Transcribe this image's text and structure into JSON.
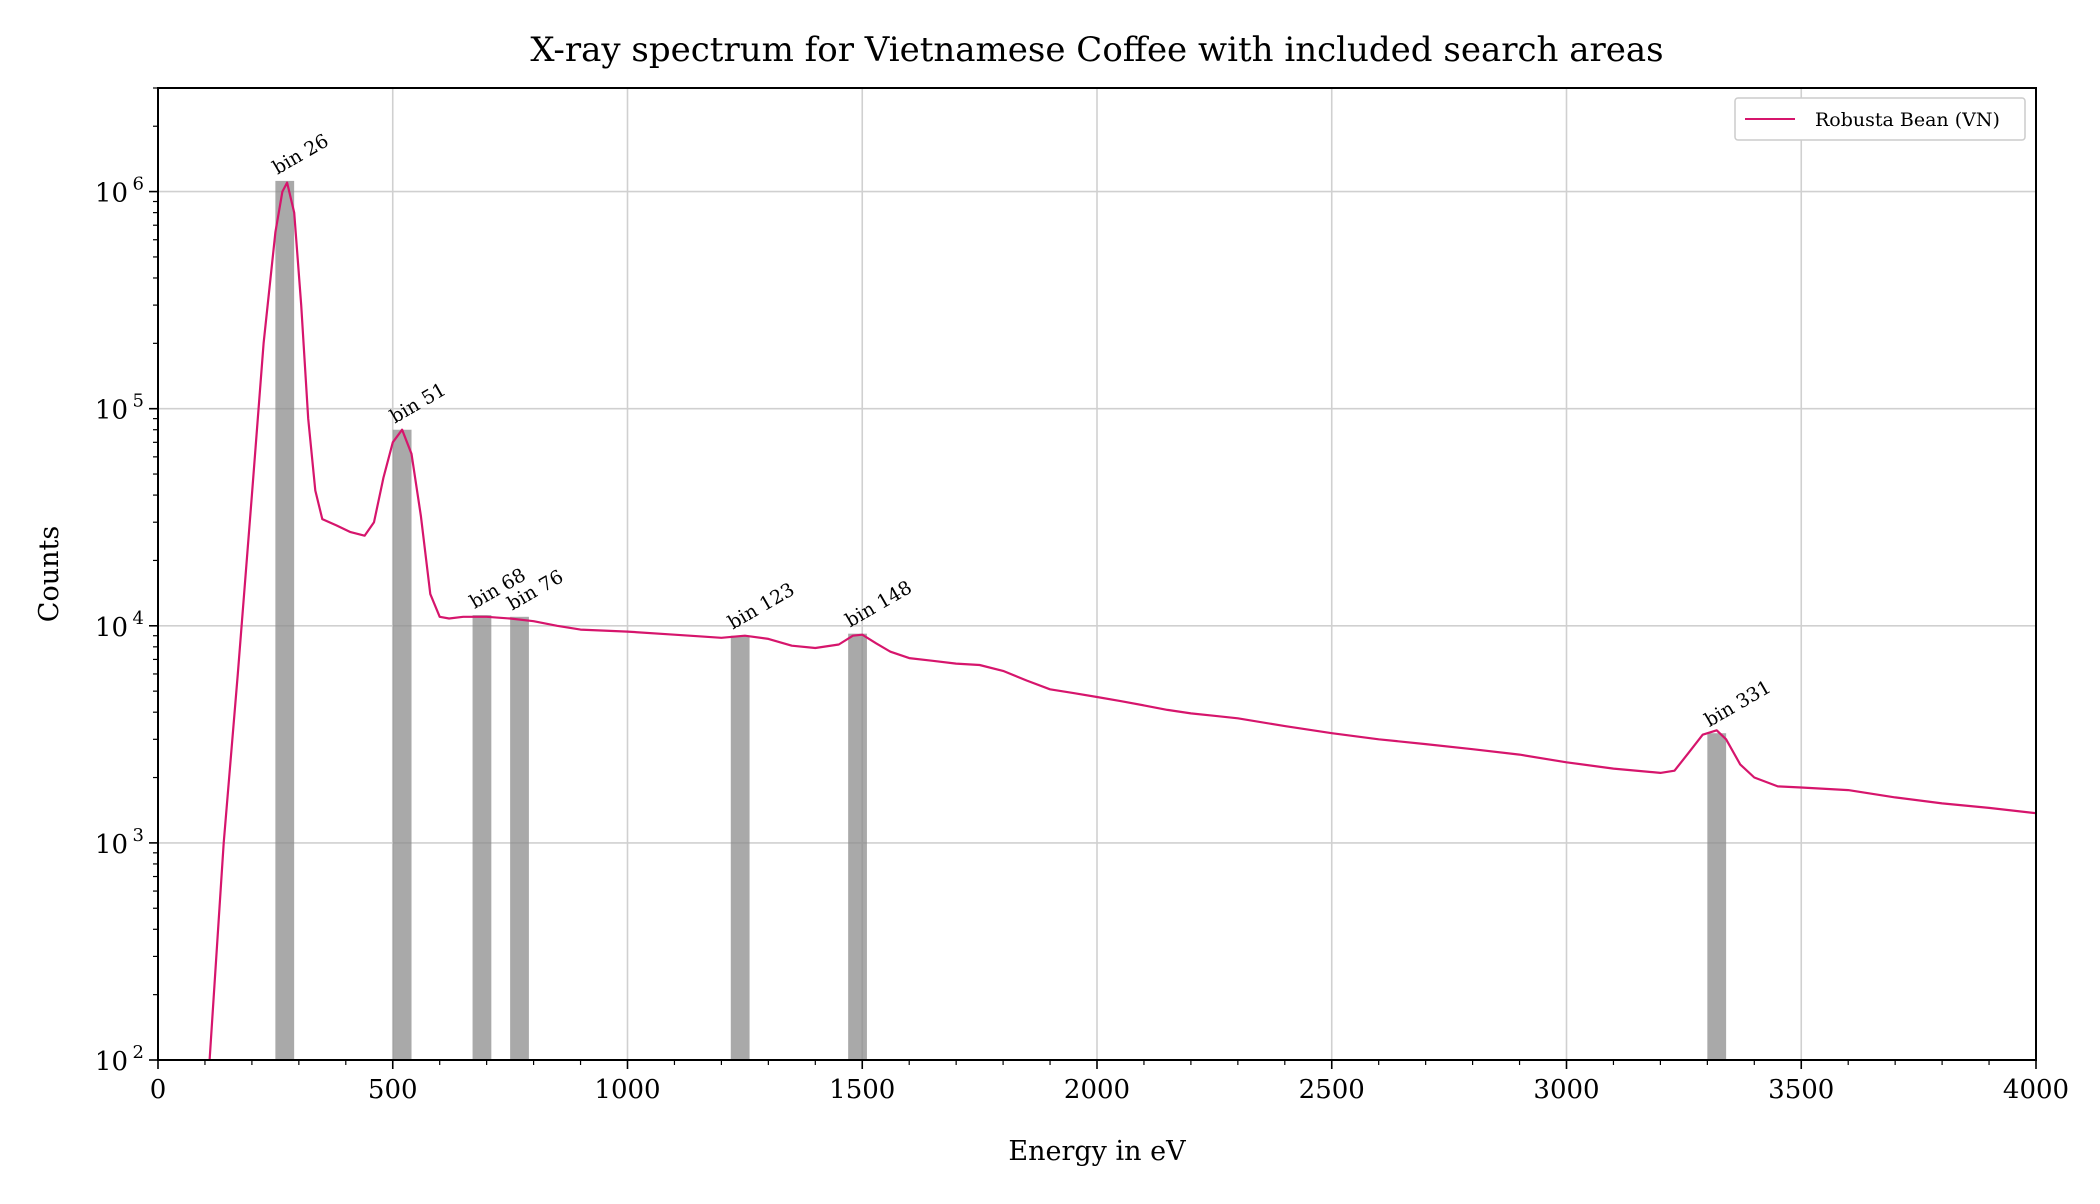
{
  "chart_data": {
    "type": "line",
    "title": "X-ray spectrum for Vietnamese Coffee with included search areas",
    "xlabel": "Energy in eV",
    "ylabel": "Counts",
    "xlim": [
      0,
      4000
    ],
    "ylim": [
      100,
      3000000
    ],
    "yscale": "log",
    "grid": true,
    "legend_position": "top-right",
    "x_ticks": [
      "0",
      "500",
      "1000",
      "1500",
      "2000",
      "2500",
      "3000",
      "3500",
      "4000"
    ],
    "y_ticks": [
      {
        "value": 100,
        "base": "10",
        "exp": "2"
      },
      {
        "value": 1000,
        "base": "10",
        "exp": "3"
      },
      {
        "value": 10000,
        "base": "10",
        "exp": "4"
      },
      {
        "value": 100000,
        "base": "10",
        "exp": "5"
      },
      {
        "value": 1000000,
        "base": "10",
        "exp": "6"
      }
    ],
    "series": [
      {
        "name": "Robusta Bean (VN)",
        "color": "#d6156c",
        "x": [
          110,
          140,
          170,
          200,
          225,
          250,
          265,
          275,
          290,
          305,
          320,
          335,
          350,
          380,
          410,
          440,
          460,
          480,
          500,
          520,
          540,
          560,
          580,
          600,
          620,
          650,
          700,
          750,
          800,
          850,
          900,
          1000,
          1100,
          1200,
          1250,
          1300,
          1350,
          1400,
          1450,
          1480,
          1500,
          1530,
          1560,
          1600,
          1650,
          1700,
          1750,
          1800,
          1850,
          1900,
          1950,
          2000,
          2050,
          2100,
          2150,
          2200,
          2250,
          2300,
          2400,
          2500,
          2600,
          2700,
          2800,
          2900,
          3000,
          3100,
          3200,
          3230,
          3260,
          3290,
          3320,
          3340,
          3370,
          3400,
          3450,
          3500,
          3600,
          3700,
          3800,
          3900,
          4000
        ],
        "y": [
          100,
          1000,
          6000,
          40000,
          200000,
          650000,
          1000000,
          1100000,
          800000,
          300000,
          90000,
          42000,
          31000,
          29000,
          27000,
          26000,
          30000,
          48000,
          70000,
          80000,
          62000,
          32000,
          14000,
          11000,
          10800,
          11000,
          11000,
          10800,
          10500,
          10000,
          9600,
          9400,
          9100,
          8800,
          9000,
          8700,
          8100,
          7900,
          8200,
          9000,
          9100,
          8300,
          7600,
          7100,
          6900,
          6700,
          6600,
          6200,
          5600,
          5100,
          4900,
          4700,
          4500,
          4300,
          4100,
          3950,
          3850,
          3750,
          3450,
          3200,
          3000,
          2850,
          2700,
          2550,
          2350,
          2200,
          2100,
          2150,
          2600,
          3150,
          3300,
          3000,
          2300,
          2000,
          1820,
          1800,
          1750,
          1620,
          1520,
          1450,
          1370
        ]
      }
    ],
    "search_areas": [
      {
        "label": "bin 26",
        "x": 270,
        "peak": 1120000
      },
      {
        "label": "bin 51",
        "x": 520,
        "peak": 80000
      },
      {
        "label": "bin 68",
        "x": 690,
        "peak": 11200
      },
      {
        "label": "bin 76",
        "x": 770,
        "peak": 11000
      },
      {
        "label": "bin 123",
        "x": 1240,
        "peak": 9000
      },
      {
        "label": "bin 148",
        "x": 1490,
        "peak": 9200
      },
      {
        "label": "bin 331",
        "x": 3320,
        "peak": 3200
      }
    ],
    "search_area_width_ev": 40
  }
}
